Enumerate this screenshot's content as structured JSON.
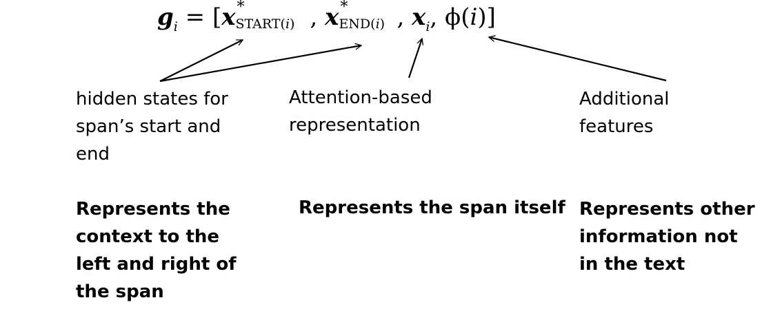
{
  "formula": {
    "lhs": "g",
    "lhs_sub": "i",
    "equals": "=",
    "open_bracket": "[",
    "x": "x",
    "star": "*",
    "start_sub": "START(",
    "end_sub": "END(",
    "sub_index": "i",
    "close_paren": ")",
    "comma": ",",
    "hat_sub": "i",
    "phi": "ϕ(",
    "phi_arg": "i",
    "close": ")]"
  },
  "labels": {
    "hidden_states": "hidden states for\nspan’s start and\nend",
    "attention": "Attention-based\nrepresentation",
    "additional": "Additional\nfeatures"
  },
  "descriptions": {
    "context": "Represents the\ncontext to the\nleft and right of\nthe span",
    "span_itself": "Represents the span itself",
    "other_info": "Represents other\ninformation not\nin the text"
  },
  "colors": {
    "text": "#000000",
    "arrow": "#000000",
    "background": "#ffffff"
  }
}
